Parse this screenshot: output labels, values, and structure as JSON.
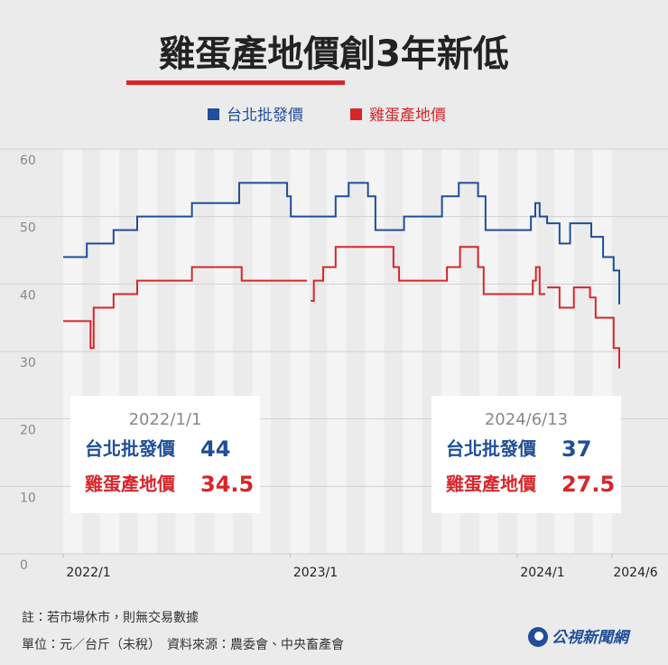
{
  "chart_data": {
    "type": "line",
    "line_style": "step",
    "title": "雞蛋產地價創3年新低",
    "xlim": [
      "2022/1/1",
      "2024/6/13"
    ],
    "xticks": [
      {
        "value": "2022/1/1",
        "label": "2022/1"
      },
      {
        "value": "2023/1/1",
        "label": "2023/1"
      },
      {
        "value": "2024/1/1",
        "label": "2024/1"
      },
      {
        "value": "2024/6/1",
        "label": "2024/6"
      }
    ],
    "ylim": [
      0,
      60
    ],
    "yticks": [
      0,
      10,
      20,
      30,
      40,
      50,
      60
    ],
    "grid": true,
    "series": [
      {
        "name": "台北批發價",
        "color": "#1f4e9a",
        "x": [
          "2022/1/1",
          "2022/2/8",
          "2022/3/23",
          "2022/4/30",
          "2022/7/27",
          "2022/10/11",
          "2022/12/27",
          "2023/1/2",
          "2023/3/15",
          "2023/4/5",
          "2023/5/6",
          "2023/5/18",
          "2023/7/3",
          "2023/9/2",
          "2023/9/29",
          "2023/10/30",
          "2023/11/11",
          "2024/1/23",
          "2024/1/30",
          "2024/2/6",
          "2024/2/18",
          "2024/3/9",
          "2024/3/26",
          "2024/4/29",
          "2024/5/18",
          "2024/6/4",
          "2024/6/13"
        ],
        "values": [
          44,
          46,
          48,
          50,
          52,
          55,
          53,
          50,
          53,
          55,
          53,
          48,
          50,
          53,
          55,
          53,
          48,
          50,
          52,
          50,
          49,
          46,
          49,
          47,
          44,
          42,
          37
        ]
      },
      {
        "name": "雞蛋產地價",
        "color": "#d7262b",
        "x": [
          "2022/1/1",
          "2022/2/14",
          "2022/2/19",
          "2022/3/23",
          "2022/4/30",
          "2022/7/27",
          "2022/10/15",
          "2023/1/28",
          "2023/2/3",
          "2023/2/8",
          "2023/2/23",
          "2023/3/15",
          "2023/6/16",
          "2023/6/25",
          "2023/9/10",
          "2023/10/1",
          "2023/10/30",
          "2023/11/8",
          "2024/1/26",
          "2024/1/31",
          "2024/2/6",
          "2024/2/15",
          "2024/2/18",
          "2024/3/9",
          "2024/4/1",
          "2024/4/27",
          "2024/5/6",
          "2024/6/4",
          "2024/6/13"
        ],
        "values": [
          34.5,
          30.5,
          36.5,
          38.5,
          40.5,
          42.5,
          40.5,
          null,
          37.5,
          40.5,
          42.5,
          45.5,
          42.5,
          40.5,
          42.5,
          45.5,
          42.5,
          38.5,
          40.5,
          42.5,
          38.5,
          null,
          39.5,
          36.5,
          39.5,
          38,
          35,
          30.5,
          27.5
        ]
      }
    ],
    "annotations": [
      {
        "date": "2022/1/1",
        "rows": [
          {
            "label": "台北批發價",
            "value": 44
          },
          {
            "label": "雞蛋產地價",
            "value": 34.5
          }
        ]
      },
      {
        "date": "2024/6/13",
        "rows": [
          {
            "label": "台北批發價",
            "value": 37
          },
          {
            "label": "雞蛋產地價",
            "value": 27.5
          }
        ]
      }
    ]
  },
  "footer": {
    "note": "註：若市場休市，則無交易數據",
    "unit_source": "單位：元／台斤（未稅）　資料來源：農委會、中央畜產會",
    "logo": "公視新聞網"
  }
}
